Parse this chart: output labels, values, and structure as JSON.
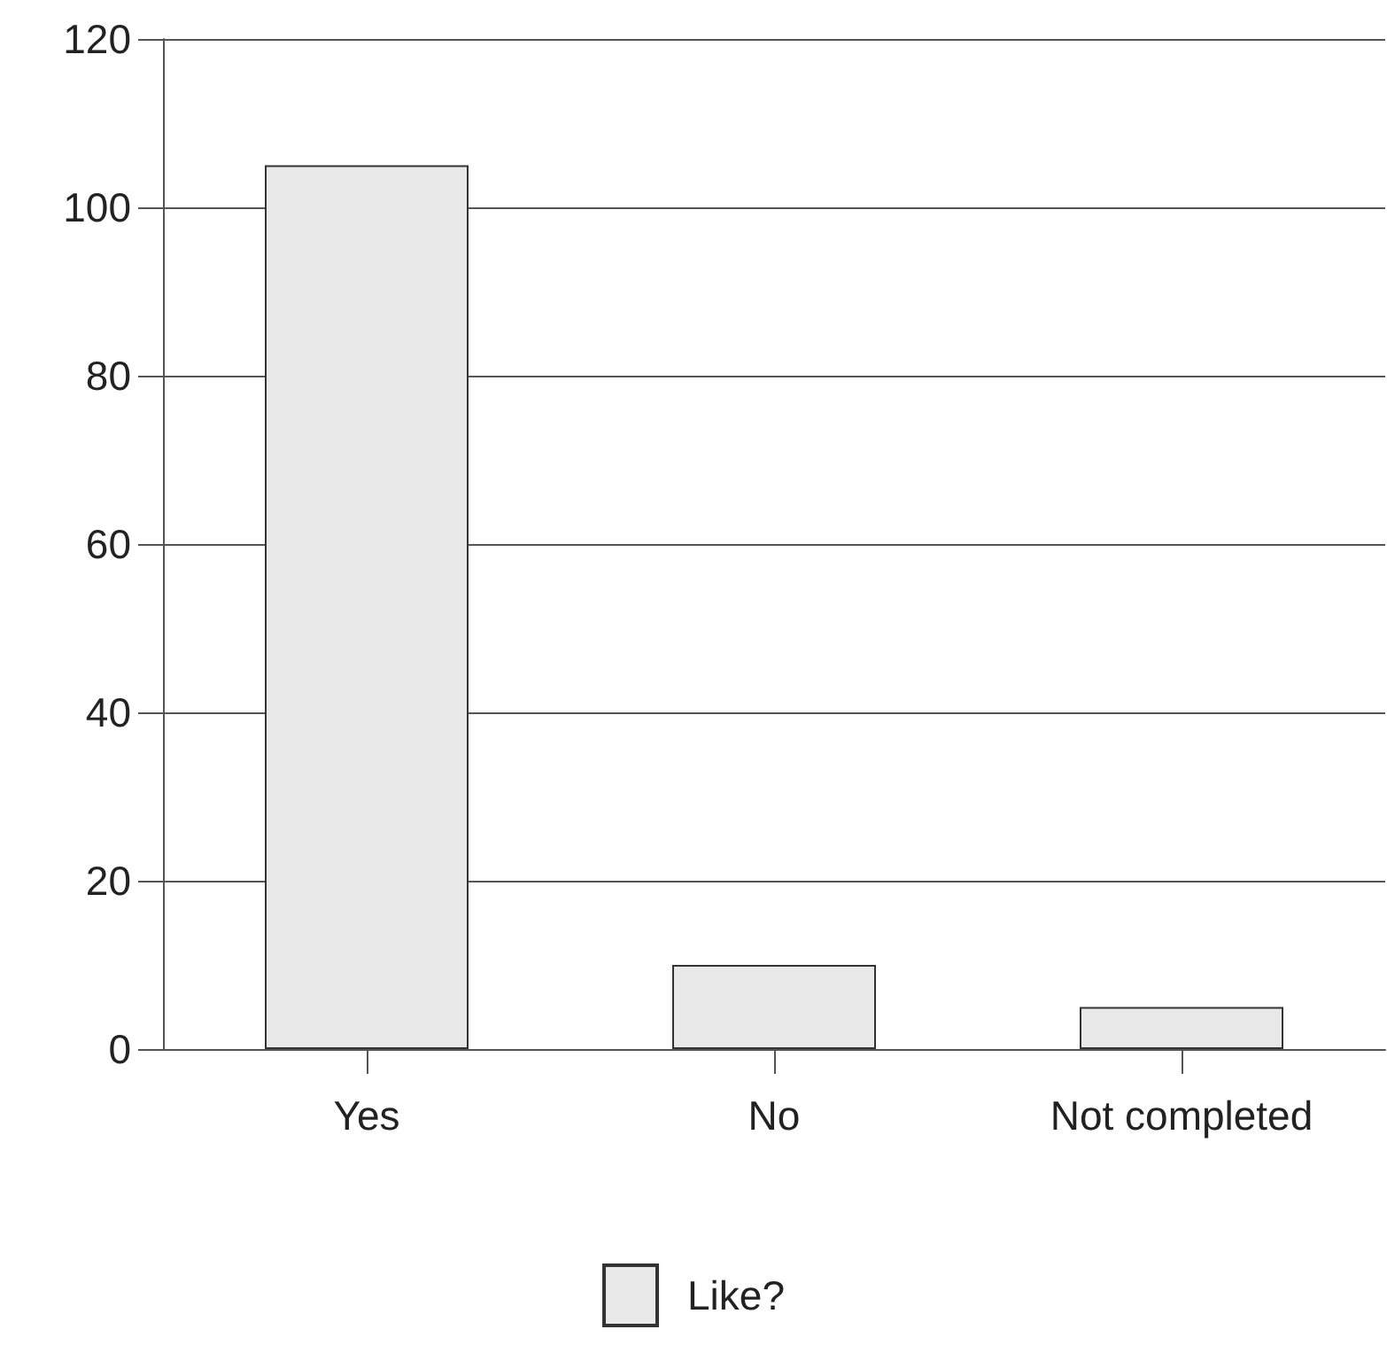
{
  "chart_data": {
    "type": "bar",
    "categories": [
      "Yes",
      "No",
      "Not completed"
    ],
    "series": [
      {
        "name": "Like?",
        "color": "#e8e8e8",
        "values": [
          105,
          10,
          5
        ]
      }
    ],
    "ylim": [
      0,
      120
    ],
    "yticks": [
      0,
      20,
      40,
      60,
      80,
      100,
      120
    ],
    "grid": "y",
    "legend": "bottom"
  }
}
